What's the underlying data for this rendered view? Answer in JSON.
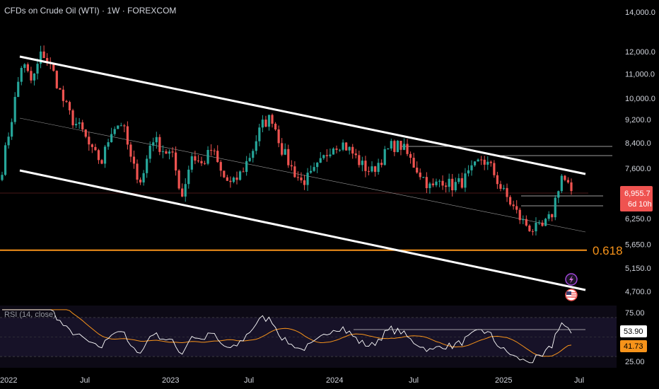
{
  "header": {
    "symbol": "CFDs on Crude Oil (WTI)",
    "separator": "·",
    "interval": "1W",
    "exchange": "FOREXCOM"
  },
  "colors": {
    "background": "#000000",
    "bull": "#26a69a",
    "bear": "#ef5350",
    "fib": "#f7931a",
    "channel": "#ffffff",
    "rsi_line": "#ffffff",
    "rsi_ma": "#f7931a",
    "price_marker": "#ef5350"
  },
  "price_label": {
    "value": "6,955.7",
    "countdown": "6d 10h"
  },
  "fib_label": "0.618",
  "icons": [
    "lightning-event-icon",
    "us-flag-event-icon"
  ],
  "rsi": {
    "title": "RSI (14, close)",
    "value": "53.90",
    "ma_value": "41.73"
  },
  "chart_data": [
    {
      "type": "candlestick",
      "title": "CFDs on Crude Oil (WTI) · 1W · FOREXCOM",
      "scale": "log",
      "x_ticks": [
        "2022",
        "Jul",
        "2023",
        "Jul",
        "2024",
        "Jul",
        "2025",
        "Jul"
      ],
      "y_ticks": [
        "14,000.0",
        "12,000.0",
        "11,000.0",
        "10,000.0",
        "9,200.0",
        "8,400.0",
        "7,600.0",
        "6,250.0",
        "5,650.0",
        "5,150.0",
        "4,700.0"
      ],
      "ylim": [
        4500,
        14500
      ],
      "series": [
        {
          "name": "price",
          "approx_closes": [
            7600,
            9300,
            11500,
            10600,
            12000,
            11200,
            10000,
            9200,
            8800,
            8100,
            7800,
            8900,
            9100,
            7700,
            7200,
            8600,
            8200,
            8000,
            6800,
            8000,
            7700,
            8200,
            7400,
            7100,
            7500,
            8100,
            9000,
            9300,
            8200,
            7600,
            7200,
            7400,
            7800,
            8300,
            8400,
            8100,
            7700,
            7500,
            7900,
            8300,
            8300,
            7800,
            7400,
            7000,
            7300,
            7100,
            7200,
            7500,
            7900,
            7600,
            7000,
            6600,
            6200,
            6000,
            6000,
            6300,
            7400,
            6956
          ]
        }
      ],
      "annotations": [
        {
          "type": "fibonacci",
          "level": "0.618",
          "price": 5500
        },
        {
          "type": "channel",
          "name": "descending channel"
        },
        {
          "type": "last_price",
          "value": 6955.7
        }
      ]
    },
    {
      "type": "line",
      "title": "RSI (14, close)",
      "y_ticks": [
        "75.00",
        "25.00"
      ],
      "ylim": [
        20,
        80
      ],
      "series": [
        {
          "name": "RSI",
          "last": 53.9
        },
        {
          "name": "RSI MA",
          "last": 41.73
        }
      ]
    }
  ]
}
